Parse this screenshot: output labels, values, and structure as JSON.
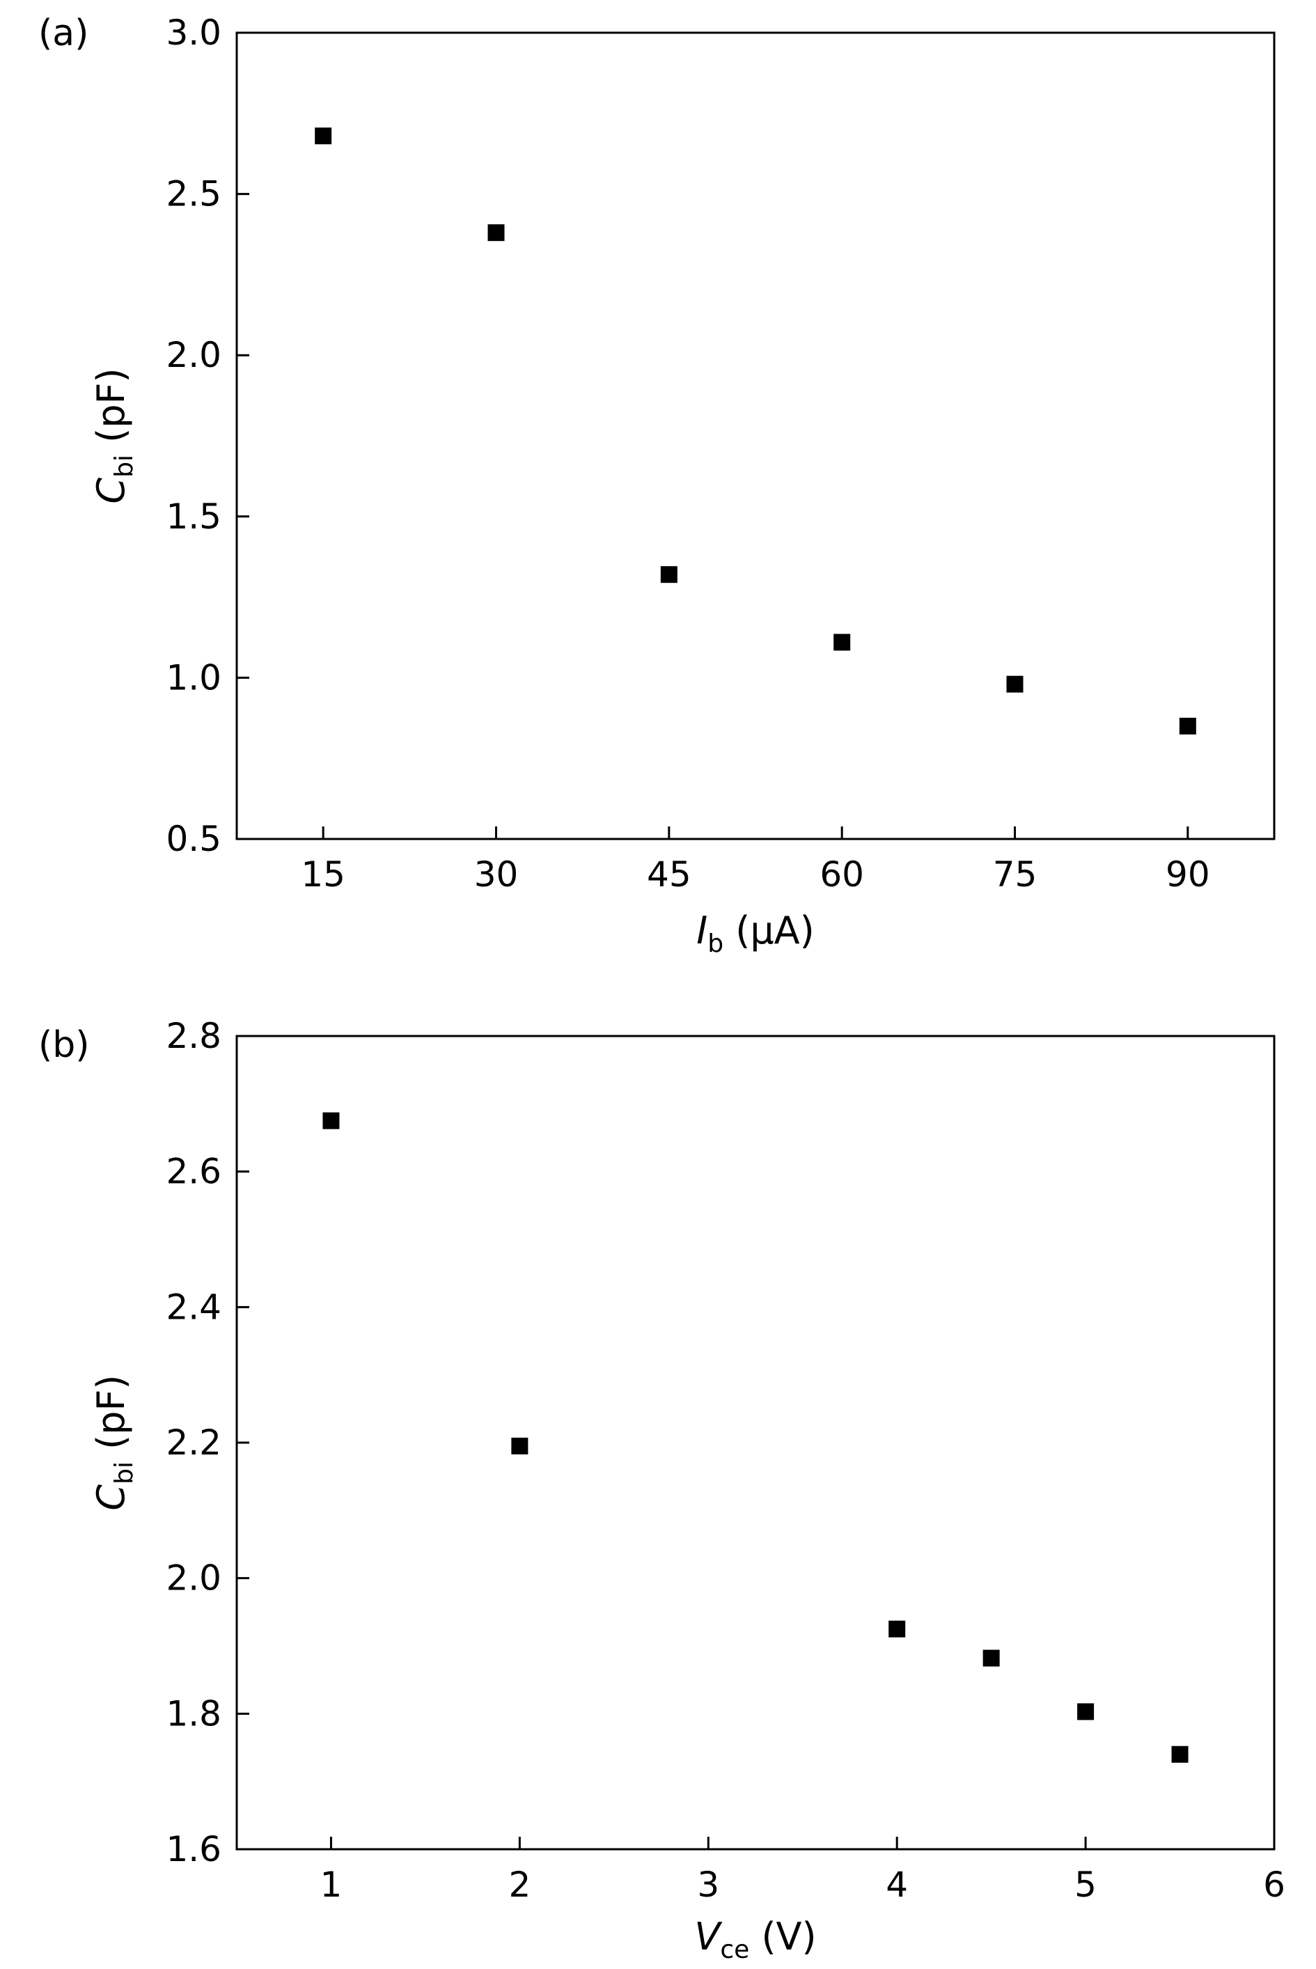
{
  "figure": {
    "panels": [
      {
        "tag": "(a)",
        "ylabel": {
          "main": "C",
          "sub": "bi",
          "unit": " (pF)"
        },
        "xlabel": {
          "main": "I",
          "sub": "b",
          "unit": " (μA)"
        }
      },
      {
        "tag": "(b)",
        "ylabel": {
          "main": "C",
          "sub": "bi",
          "unit": " (pF)"
        },
        "xlabel": {
          "main": "V",
          "sub": "ce",
          "unit": " (V)"
        }
      }
    ]
  },
  "chart_data": [
    {
      "type": "scatter",
      "title": "",
      "xlabel": "Ib (μA)",
      "ylabel": "Cbi (pF)",
      "xlim": [
        7.5,
        97.5
      ],
      "ylim": [
        0.5,
        3.0
      ],
      "xticks": [
        15,
        30,
        45,
        60,
        75,
        90
      ],
      "yticks": [
        0.5,
        1.0,
        1.5,
        2.0,
        2.5,
        3.0
      ],
      "xtick_labels": [
        "15",
        "30",
        "45",
        "60",
        "75",
        "90"
      ],
      "ytick_labels": [
        "0.5",
        "1.0",
        "1.5",
        "2.0",
        "2.5",
        "3.0"
      ],
      "grid": false,
      "marker": "square",
      "color": "#000000",
      "x": [
        15,
        30,
        45,
        60,
        75,
        90
      ],
      "y": [
        2.68,
        2.38,
        1.32,
        1.11,
        0.98,
        0.85
      ]
    },
    {
      "type": "scatter",
      "title": "",
      "xlabel": "Vce (V)",
      "ylabel": "Cbi (pF)",
      "xlim": [
        0.5,
        6
      ],
      "ylim": [
        1.6,
        2.8
      ],
      "xticks": [
        1,
        2,
        3,
        4,
        5,
        6
      ],
      "yticks": [
        1.6,
        1.8,
        2.0,
        2.2,
        2.4,
        2.6,
        2.8
      ],
      "xtick_labels": [
        "1",
        "2",
        "3",
        "4",
        "5",
        "6"
      ],
      "ytick_labels": [
        "1.6",
        "1.8",
        "2.0",
        "2.2",
        "2.4",
        "2.6",
        "2.8"
      ],
      "grid": false,
      "marker": "square",
      "color": "#000000",
      "x": [
        1,
        2,
        4,
        4.5,
        5,
        5.5
      ],
      "y": [
        2.675,
        2.195,
        1.925,
        1.882,
        1.803,
        1.74
      ]
    }
  ]
}
